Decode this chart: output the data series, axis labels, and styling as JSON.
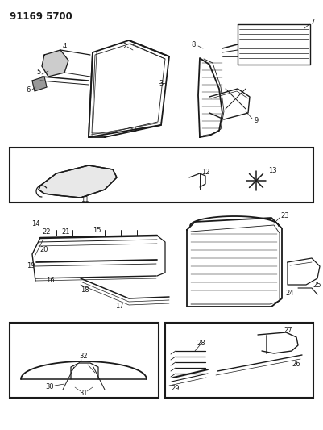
{
  "title": "91169 5700",
  "bg_color": "#ffffff",
  "line_color": "#1a1a1a",
  "fig_width": 4.01,
  "fig_height": 5.33,
  "dpi": 100,
  "title_fontsize": 8.5,
  "label_fontsize": 6.0
}
